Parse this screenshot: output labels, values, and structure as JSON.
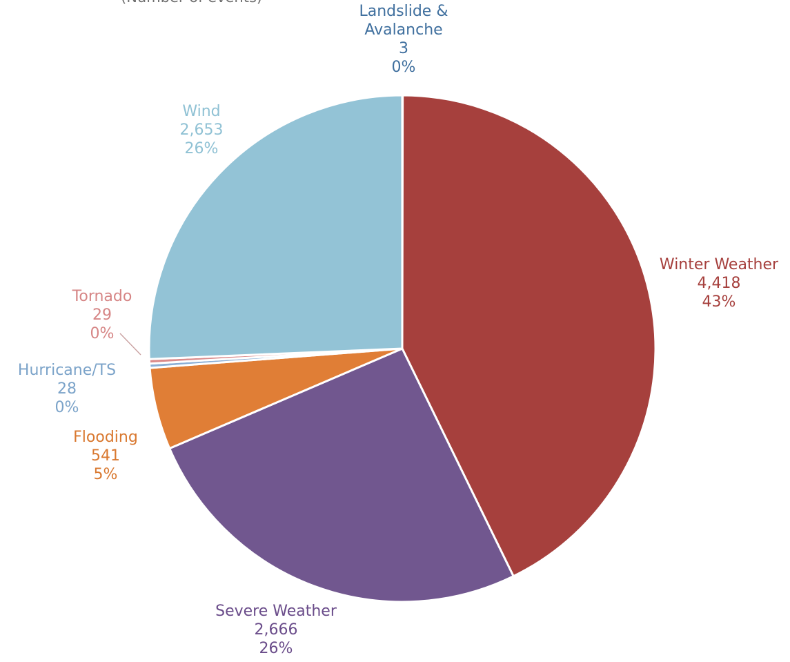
{
  "figure": {
    "title": "(Number of events)"
  },
  "chart_data": {
    "type": "pie",
    "start_angle_deg": 0,
    "direction": "clockwise",
    "slices": [
      {
        "label": "Landslide & Avalanche",
        "value": 3,
        "count_text": "3",
        "percent_text": "0%",
        "color": "#4f7fb0"
      },
      {
        "label": "Winter Weather",
        "value": 4418,
        "count_text": "4,418",
        "percent_text": "43%",
        "color": "#a6403d"
      },
      {
        "label": "Severe Weather",
        "value": 2666,
        "count_text": "2,666",
        "percent_text": "26%",
        "color": "#71578f"
      },
      {
        "label": "Flooding",
        "value": 541,
        "count_text": "541",
        "percent_text": "5%",
        "color": "#e07e36"
      },
      {
        "label": "Hurricane/TS",
        "value": 28,
        "count_text": "28",
        "percent_text": "0%",
        "color": "#8aaed5"
      },
      {
        "label": "Tornado",
        "value": 29,
        "count_text": "29",
        "percent_text": "0%",
        "color": "#db8a8a"
      },
      {
        "label": "Wind",
        "value": 2653,
        "count_text": "2,653",
        "percent_text": "26%",
        "color": "#93c3d6"
      }
    ],
    "label_colors": {
      "Landslide & Avalanche": "#3f6f9e",
      "Winter Weather": "#a6403d",
      "Severe Weather": "#6a4c8a",
      "Flooding": "#d9782f",
      "Hurricane/TS": "#7ba3c9",
      "Tornado": "#d68585",
      "Wind": "#8fc1d4"
    }
  }
}
